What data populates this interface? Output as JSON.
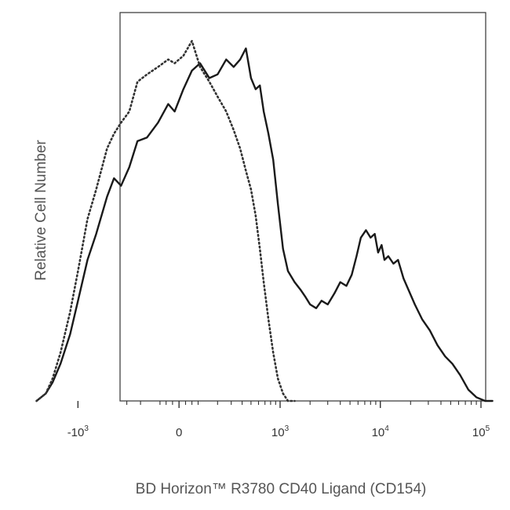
{
  "chart_data": {
    "type": "line",
    "title": "",
    "xlabel": "BD Horizon™ R3780 CD40 Ligand (CD154)",
    "ylabel": "Relative Cell Number",
    "x_scale": "biexponential",
    "xlim": [
      -3000,
      200000
    ],
    "ylim": [
      0,
      100
    ],
    "x_ticks": [
      {
        "value": -1000,
        "base": "-10",
        "exp": "3"
      },
      {
        "value": 0,
        "base": "0",
        "exp": ""
      },
      {
        "value": 1000,
        "base": "10",
        "exp": "3"
      },
      {
        "value": 10000,
        "base": "10",
        "exp": "4"
      },
      {
        "value": 100000,
        "base": "10",
        "exp": "5"
      }
    ],
    "grid": false,
    "legend": "none",
    "series": [
      {
        "style": "solid",
        "color": "#1a1a1a",
        "x": [
          -2600,
          -2100,
          -1800,
          -1500,
          -1200,
          -1000,
          -800,
          -650,
          -500,
          -420,
          -350,
          -280,
          -220,
          -160,
          -100,
          -50,
          -20,
          20,
          60,
          100,
          150,
          200,
          260,
          320,
          380,
          440,
          500,
          560,
          620,
          680,
          760,
          850,
          950,
          1070,
          1200,
          1400,
          1600,
          1800,
          2000,
          2300,
          2600,
          3000,
          3500,
          4000,
          4600,
          5200,
          5800,
          6400,
          7200,
          8000,
          8800,
          9500,
          10300,
          11000,
          12000,
          13500,
          15000,
          17000,
          19000,
          22000,
          26000,
          31000,
          37000,
          44000,
          52000,
          62000,
          75000,
          90000,
          110000,
          130000
        ],
        "y": [
          0,
          2,
          5,
          10,
          18,
          27,
          38,
          45,
          55,
          60,
          58,
          63,
          70,
          71,
          75,
          80,
          78,
          84,
          89,
          91,
          87,
          88,
          92,
          90,
          92,
          95,
          87,
          84,
          85,
          78,
          72,
          65,
          53,
          41,
          35,
          32,
          30,
          28,
          26,
          25,
          27,
          26,
          29,
          32,
          31,
          34,
          39,
          44,
          46,
          44,
          45,
          40,
          42,
          38,
          39,
          37,
          38,
          33,
          30,
          26,
          22,
          19,
          15,
          12,
          10,
          7,
          3,
          1,
          0,
          0
        ]
      },
      {
        "style": "dotted",
        "color": "#333333",
        "x": [
          -2600,
          -2100,
          -1800,
          -1500,
          -1200,
          -1000,
          -800,
          -650,
          -500,
          -420,
          -350,
          -280,
          -220,
          -160,
          -100,
          -50,
          -20,
          20,
          60,
          100,
          150,
          200,
          260,
          320,
          380,
          440,
          500,
          560,
          620,
          680,
          760,
          850,
          950,
          1070,
          1200,
          1400
        ],
        "y": [
          0,
          2,
          6,
          13,
          24,
          35,
          49,
          57,
          68,
          72,
          75,
          78,
          86,
          88,
          90,
          92,
          91,
          93,
          97,
          90,
          86,
          82,
          78,
          73,
          68,
          62,
          57,
          50,
          41,
          32,
          22,
          13,
          6,
          2,
          0,
          0
        ]
      }
    ]
  }
}
